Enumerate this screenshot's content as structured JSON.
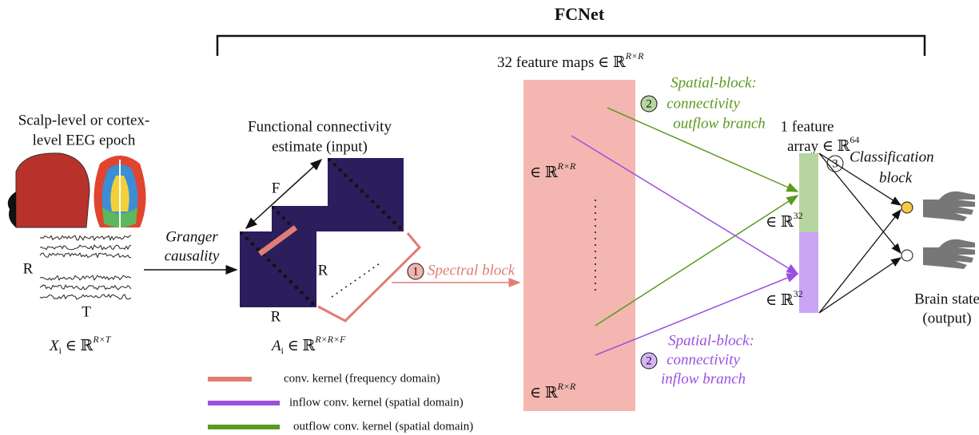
{
  "title": "FCNet",
  "input": {
    "label": [
      "Scalp-level or cortex-",
      "level EEG epoch"
    ],
    "axis_r": "R",
    "axis_t": "T",
    "symbol": "X",
    "subscript": "i",
    "relation": " ∈ ℝ",
    "superscript": "R×T"
  },
  "granger": [
    "Granger",
    "causality"
  ],
  "connectivity": {
    "label": [
      "Functional connectivity",
      "estimate (input)"
    ],
    "axis_f": "F",
    "axis_r_bottom": "R",
    "axis_r_inner": "R",
    "symbol": "A",
    "subscript": "i",
    "relation": " ∈ ℝ",
    "superscript": "R×R×F"
  },
  "spectral": {
    "number": "1",
    "label": "Spectral block"
  },
  "feature_maps": {
    "label": "32 feature maps ∈ ℝ",
    "superscript": "R×R",
    "top_relation": "∈ ℝ",
    "top_superscript": "R×R",
    "bottom_relation": "∈ ℝ",
    "bottom_superscript": "R×R"
  },
  "outflow": {
    "number": "2",
    "label": [
      "Spatial-block:",
      "connectivity",
      "outflow branch"
    ]
  },
  "inflow": {
    "number": "2",
    "label": [
      "Spatial-block:",
      "connectivity",
      "inflow branch"
    ]
  },
  "feature_array": {
    "label": [
      "1 feature",
      "array ∈ ℝ"
    ],
    "superscript": "64",
    "top_relation": "∈ ℝ",
    "top_superscript": "32",
    "bottom_relation": "∈ ℝ",
    "bottom_superscript": "32"
  },
  "classification": {
    "number": "3",
    "label": [
      "Classification",
      "block"
    ]
  },
  "output": {
    "label": [
      "Brain state",
      "(output)"
    ]
  },
  "legend": [
    "conv. kernel (frequency domain)",
    "inflow conv. kernel (spatial domain)",
    "outflow conv. kernel (spatial domain)"
  ]
}
